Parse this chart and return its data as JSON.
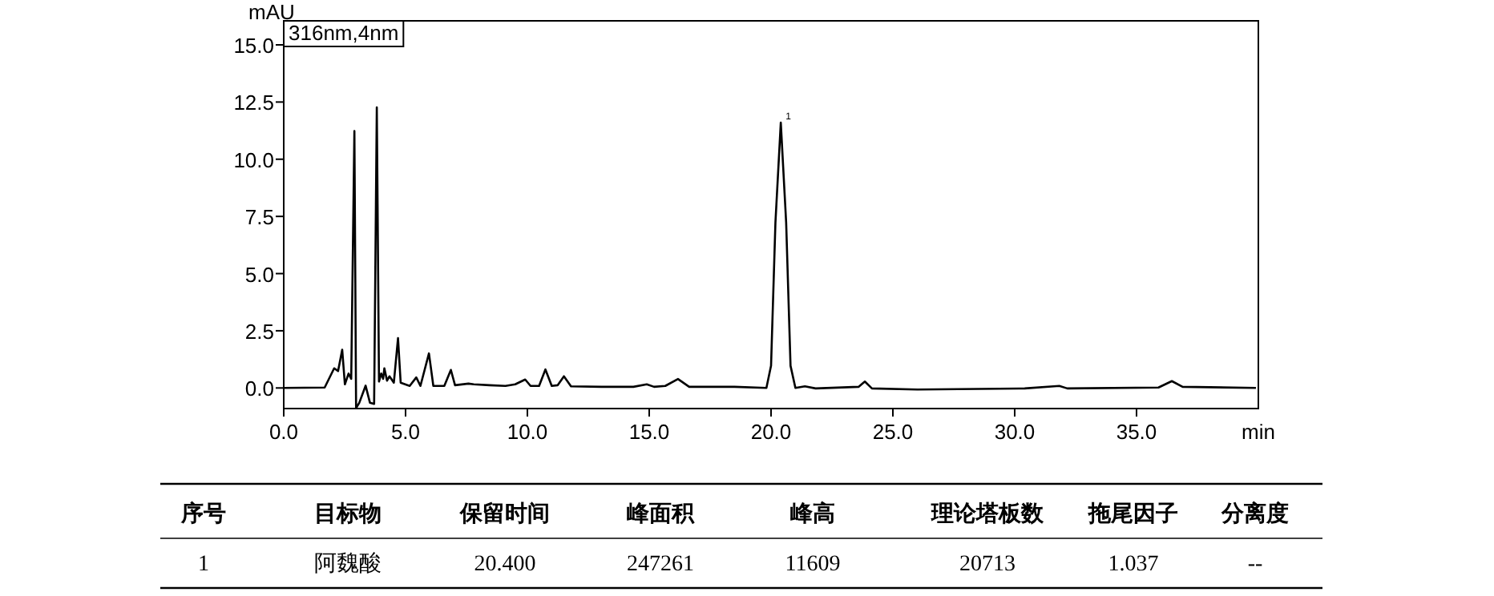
{
  "chart_data": {
    "type": "line",
    "xlabel": "min",
    "ylabel": "mAU",
    "xlim": [
      0,
      40
    ],
    "ylim": [
      -0.9,
      16.05
    ],
    "xticks": [
      {
        "value": 0,
        "label": "0.0"
      },
      {
        "value": 5,
        "label": "5.0"
      },
      {
        "value": 10,
        "label": "10.0"
      },
      {
        "value": 15,
        "label": "15.0"
      },
      {
        "value": 20,
        "label": "20.0"
      },
      {
        "value": 25,
        "label": "25.0"
      },
      {
        "value": 30,
        "label": "30.0"
      },
      {
        "value": 35,
        "label": "35.0"
      }
    ],
    "yticks": [
      {
        "value": 0,
        "label": "0.0"
      },
      {
        "value": 2.5,
        "label": "2.5"
      },
      {
        "value": 5,
        "label": "5.0"
      },
      {
        "value": 7.5,
        "label": "7.5"
      },
      {
        "value": 10,
        "label": "10.0"
      },
      {
        "value": 12.5,
        "label": "12.5"
      },
      {
        "value": 15,
        "label": "15.0"
      }
    ],
    "grid": false,
    "marker": "none",
    "line_style": "solid",
    "x": [
      0,
      1.68,
      2.07,
      2.23,
      2.4,
      2.51,
      2.66,
      2.77,
      2.9,
      2.97,
      3.1,
      3.36,
      3.54,
      3.71,
      3.82,
      3.91,
      4.0,
      4.08,
      4.13,
      4.24,
      4.34,
      4.52,
      4.69,
      4.8,
      5.17,
      5.44,
      5.61,
      5.96,
      6.14,
      6.59,
      6.86,
      7.03,
      7.58,
      7.8,
      8.45,
      9.1,
      9.5,
      9.91,
      10.13,
      10.48,
      10.74,
      11.0,
      11.24,
      11.5,
      11.79,
      13.03,
      14.35,
      14.9,
      15.2,
      15.66,
      16.18,
      16.64,
      18.5,
      19.81,
      20.0,
      20.18,
      20.4,
      20.62,
      20.8,
      21.0,
      21.39,
      21.83,
      23.59,
      23.85,
      24.14,
      26.01,
      30.41,
      31.83,
      32.16,
      35.9,
      36.45,
      36.89,
      39.9
    ],
    "series": [
      {
        "color": "#000000",
        "values": [
          0,
          0.02,
          0.86,
          0.74,
          1.67,
          0.16,
          0.63,
          0.4,
          11.23,
          -0.88,
          -0.65,
          0.1,
          -0.65,
          -0.7,
          12.27,
          0.28,
          0.63,
          0.4,
          0.86,
          0.32,
          0.51,
          0.23,
          2.18,
          0.23,
          0.09,
          0.46,
          0.09,
          1.51,
          0.09,
          0.09,
          0.79,
          0.12,
          0.19,
          0.16,
          0.12,
          0.09,
          0.16,
          0.37,
          0.09,
          0.09,
          0.81,
          0.09,
          0.12,
          0.51,
          0.07,
          0.05,
          0.05,
          0.16,
          0.05,
          0.09,
          0.39,
          0.05,
          0.05,
          0,
          0.97,
          7.24,
          11.6,
          7.24,
          0.97,
          0,
          0.07,
          -0.02,
          0.05,
          0.28,
          -0.02,
          -0.07,
          -0.02,
          0.09,
          -0.02,
          0.02,
          0.3,
          0.05,
          0
        ]
      }
    ],
    "annotations": [
      "316nm,4nm",
      {
        "text": "1",
        "x": 20.4,
        "y": 11.6
      },
      "序号",
      "目标物",
      "保留时间",
      "峰面积",
      "峰高",
      "理论塔板数",
      "拖尾因子",
      "分离度",
      "1",
      "阿魏酸",
      "20.400",
      "247261",
      "11609",
      "20713",
      "1.037",
      "--"
    ]
  }
}
